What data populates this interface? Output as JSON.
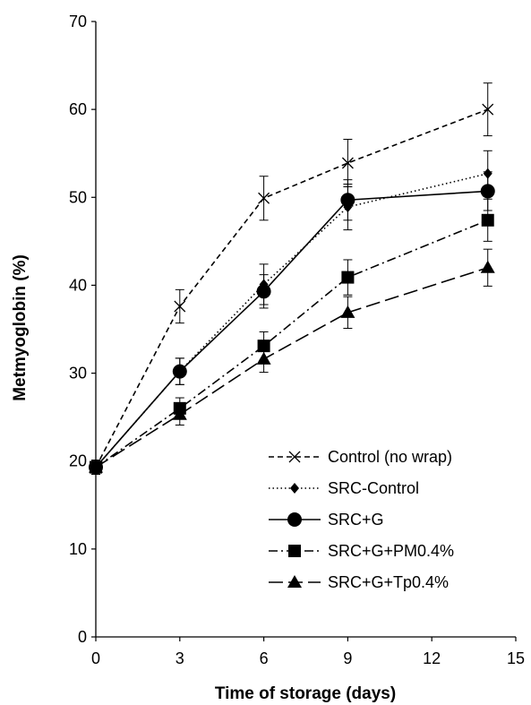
{
  "chart_data": {
    "type": "line",
    "title": "",
    "xlabel": "Time of storage (days)",
    "ylabel": "Metmyoglobin (%)",
    "xlim": [
      0,
      15
    ],
    "ylim": [
      0,
      70
    ],
    "xticks": [
      "0",
      "3",
      "6",
      "9",
      "12",
      "15"
    ],
    "yticks": [
      "0",
      "10",
      "20",
      "30",
      "40",
      "50",
      "60",
      "70"
    ],
    "grid": false,
    "legend_position": "bottom-right",
    "x": [
      0,
      3,
      6,
      9,
      14
    ],
    "series": [
      {
        "name": "Control (no wrap)",
        "values": [
          19.3,
          37.6,
          49.9,
          53.9,
          60.0
        ],
        "errors": [
          0.8,
          1.9,
          2.5,
          2.7,
          3.0
        ],
        "marker": "x-icon",
        "dash": "dashed",
        "color": "#000000"
      },
      {
        "name": "SRC-Control",
        "values": [
          19.3,
          30.2,
          40.1,
          48.9,
          52.7
        ],
        "errors": [
          0.8,
          1.5,
          2.3,
          2.6,
          2.6
        ],
        "marker": "diamond-icon",
        "dash": "dotted",
        "color": "#000000"
      },
      {
        "name": "SRC+G",
        "values": [
          19.3,
          30.2,
          39.3,
          49.7,
          50.7
        ],
        "errors": [
          0.8,
          1.5,
          1.9,
          2.3,
          2.2
        ],
        "marker": "circle-icon",
        "dash": "solid",
        "color": "#000000"
      },
      {
        "name": "SRC+G+PM0.4%",
        "values": [
          19.3,
          26.0,
          33.1,
          40.9,
          47.4
        ],
        "errors": [
          0.8,
          1.2,
          1.6,
          2.0,
          2.4
        ],
        "marker": "square-icon",
        "dash": "dash-dot",
        "color": "#000000"
      },
      {
        "name": "SRC+G+Tp0.4%",
        "values": [
          19.3,
          25.3,
          31.6,
          36.9,
          42.0
        ],
        "errors": [
          0.8,
          1.2,
          1.5,
          1.8,
          2.1
        ],
        "marker": "triangle-icon",
        "dash": "long-dash",
        "color": "#000000"
      }
    ]
  }
}
